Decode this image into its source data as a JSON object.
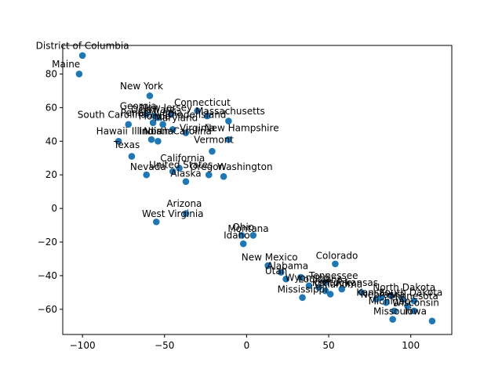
{
  "chart_data": {
    "type": "scatter",
    "title": "",
    "xlabel": "",
    "ylabel": "",
    "xlim": [
      -112,
      125
    ],
    "ylim": [
      -75,
      97
    ],
    "xticks": [
      -100,
      -50,
      0,
      50,
      100
    ],
    "yticks": [
      -60,
      -40,
      -20,
      0,
      20,
      40,
      60,
      80
    ],
    "grid": false,
    "marker_color": "#1f77b4",
    "points": [
      {
        "label": "District of Columbia",
        "x": -100,
        "y": 91
      },
      {
        "label": "Maine",
        "x": -102,
        "y": 80
      },
      {
        "label": "New York",
        "x": -59,
        "y": 67
      },
      {
        "label": "Georgia",
        "x": -61,
        "y": 56
      },
      {
        "label": "Delaware",
        "x": -56,
        "y": 55
      },
      {
        "label": "Pennsylvania",
        "x": -54,
        "y": 54
      },
      {
        "label": "South Carolina",
        "x": -72,
        "y": 50
      },
      {
        "label": "Florida",
        "x": -57,
        "y": 51
      },
      {
        "label": "Maryland",
        "x": -51,
        "y": 50
      },
      {
        "label": "New Jersey",
        "x": -46,
        "y": 56
      },
      {
        "label": "Connecticut",
        "x": -30,
        "y": 58
      },
      {
        "label": "Massachusetts",
        "x": -11,
        "y": 52
      },
      {
        "label": "Rhode Island",
        "x": -24,
        "y": 55
      },
      {
        "label": "Hawaii",
        "x": -78,
        "y": 40
      },
      {
        "label": "Illinois",
        "x": -58,
        "y": 41
      },
      {
        "label": "Indiana",
        "x": -54,
        "y": 40
      },
      {
        "label": "Virginia",
        "x": -37,
        "y": 45
      },
      {
        "label": "North Carolina",
        "x": -45,
        "y": 47
      },
      {
        "label": "New Hampshire",
        "x": -11,
        "y": 41
      },
      {
        "label": "Vermont",
        "x": -21,
        "y": 34
      },
      {
        "label": "Texas",
        "x": -70,
        "y": 31
      },
      {
        "label": "California",
        "x": -41,
        "y": 24
      },
      {
        "label": "Nevada",
        "x": -61,
        "y": 20
      },
      {
        "label": "United States",
        "x": -45,
        "y": 22
      },
      {
        "label": "Oregon",
        "x": -23,
        "y": 20
      },
      {
        "label": "Washington",
        "x": -14,
        "y": 19
      },
      {
        "label": "Alaska",
        "x": -37,
        "y": 16
      },
      {
        "label": "Arizona",
        "x": -37,
        "y": -3
      },
      {
        "label": "West Virginia",
        "x": -55,
        "y": -8
      },
      {
        "label": "Ohio",
        "x": -3,
        "y": -16
      },
      {
        "label": "Montana",
        "x": 4,
        "y": -16
      },
      {
        "label": "Idaho",
        "x": -2,
        "y": -21
      },
      {
        "label": "New Mexico",
        "x": 13,
        "y": -34
      },
      {
        "label": "Colorado",
        "x": 54,
        "y": -33
      },
      {
        "label": "Alabama",
        "x": 21,
        "y": -38
      },
      {
        "label": "Utah",
        "x": 24,
        "y": -42
      },
      {
        "label": "Wyoming",
        "x": 33,
        "y": -41
      },
      {
        "label": "Tennessee",
        "x": 48,
        "y": -44
      },
      {
        "label": "Louisiana",
        "x": 38,
        "y": -46
      },
      {
        "label": "Kentucky",
        "x": 44,
        "y": -47
      },
      {
        "label": "Oklahoma",
        "x": 48,
        "y": -49
      },
      {
        "label": "Arkansas",
        "x": 58,
        "y": -48
      },
      {
        "label": "Michigan",
        "x": 51,
        "y": -51
      },
      {
        "label": "Mississippi",
        "x": 34,
        "y": -53
      },
      {
        "label": "Kansas",
        "x": 70,
        "y": -50
      },
      {
        "label": "North Dakota",
        "x": 88,
        "y": -52
      },
      {
        "label": "South Dakota",
        "x": 82,
        "y": -53
      },
      {
        "label": "Nebraska",
        "x": 79,
        "y": -54
      },
      {
        "label": "Minnesota",
        "x": 95,
        "y": -54
      },
      {
        "label": "Minnesota",
        "x": 102,
        "y": -55
      },
      {
        "label": "Michigan",
        "x": 85,
        "y": -56
      },
      {
        "label": "Wisconsin",
        "x": 98,
        "y": -58
      },
      {
        "label": "Missouri",
        "x": 90,
        "y": -61
      },
      {
        "label": "Iowa",
        "x": 102,
        "y": -61
      },
      {
        "label": "Missouri",
        "x": 89,
        "y": -66
      },
      {
        "label": "Iowa",
        "x": 113,
        "y": -67
      }
    ],
    "annotations": [
      {
        "text": "District of Columbia",
        "x": -100,
        "y": 95
      },
      {
        "text": "Maine",
        "x": -110,
        "y": 84
      },
      {
        "text": "New York",
        "x": -64,
        "y": 71
      },
      {
        "text": "Georgia",
        "x": -66,
        "y": 59
      },
      {
        "text": "Delaware",
        "x": -57,
        "y": 57
      },
      {
        "text": "Pennsylvania",
        "x": -58,
        "y": 55
      },
      {
        "text": "New Jersey",
        "x": -49,
        "y": 58
      },
      {
        "text": "Connecticut",
        "x": -27,
        "y": 61
      },
      {
        "text": "Massachusetts",
        "x": -10,
        "y": 56
      },
      {
        "text": "Rhode Island",
        "x": -31,
        "y": 54
      },
      {
        "text": "South Carolina",
        "x": -82,
        "y": 54
      },
      {
        "text": "Florida",
        "x": -56,
        "y": 53
      },
      {
        "text": "Maryland",
        "x": -43,
        "y": 52
      },
      {
        "text": "Hawaii",
        "x": -82,
        "y": 44
      },
      {
        "text": "Illinois",
        "x": -61,
        "y": 44
      },
      {
        "text": "Indiana",
        "x": -55,
        "y": 44
      },
      {
        "text": "North Carolina",
        "x": -42,
        "y": 44
      },
      {
        "text": "Virginia",
        "x": -30,
        "y": 46
      },
      {
        "text": "New Hampshire",
        "x": -3,
        "y": 46
      },
      {
        "text": "Vermont",
        "x": -20,
        "y": 39
      },
      {
        "text": "Texas",
        "x": -73,
        "y": 36
      },
      {
        "text": "California",
        "x": -39,
        "y": 28
      },
      {
        "text": "United States",
        "x": -40,
        "y": 24
      },
      {
        "text": "Nevada",
        "x": -60,
        "y": 23
      },
      {
        "text": "Oregon",
        "x": -24,
        "y": 23
      },
      {
        "text": "Washington",
        "x": -1,
        "y": 23
      },
      {
        "text": "Alaska",
        "x": -37,
        "y": 19
      },
      {
        "text": "Arizona",
        "x": -38,
        "y": 1
      },
      {
        "text": "West Virginia",
        "x": -45,
        "y": -5
      },
      {
        "text": "Ohio",
        "x": -2,
        "y": -13
      },
      {
        "text": "Montana",
        "x": 1,
        "y": -14
      },
      {
        "text": "Idaho",
        "x": -6,
        "y": -18
      },
      {
        "text": "New Mexico",
        "x": 14,
        "y": -31
      },
      {
        "text": "Colorado",
        "x": 55,
        "y": -30
      },
      {
        "text": "Alabama",
        "x": 25,
        "y": -36
      },
      {
        "text": "Utah",
        "x": 18,
        "y": -39
      },
      {
        "text": "Wyoming",
        "x": 37,
        "y": -43
      },
      {
        "text": "Louisiana",
        "x": 45,
        "y": -44
      },
      {
        "text": "Tennessee",
        "x": 53,
        "y": -42
      },
      {
        "text": "Kentucky",
        "x": 53,
        "y": -46
      },
      {
        "text": "Oklahoma",
        "x": 56,
        "y": -47
      },
      {
        "text": "Arkansas",
        "x": 67,
        "y": -46
      },
      {
        "text": "Mississippi",
        "x": 34,
        "y": -50
      },
      {
        "text": "Kansas",
        "x": 77,
        "y": -52
      },
      {
        "text": "North Dakota",
        "x": 96,
        "y": -49
      },
      {
        "text": "South Dakota",
        "x": 100,
        "y": -52
      },
      {
        "text": "Nebraska",
        "x": 83,
        "y": -53
      },
      {
        "text": "Minnesota",
        "x": 102,
        "y": -54
      },
      {
        "text": "Michigan",
        "x": 87,
        "y": -57
      },
      {
        "text": "Wisconsin",
        "x": 103,
        "y": -58
      },
      {
        "text": "Missouri",
        "x": 89,
        "y": -63
      },
      {
        "text": "Iowa",
        "x": 103,
        "y": -63
      }
    ]
  }
}
